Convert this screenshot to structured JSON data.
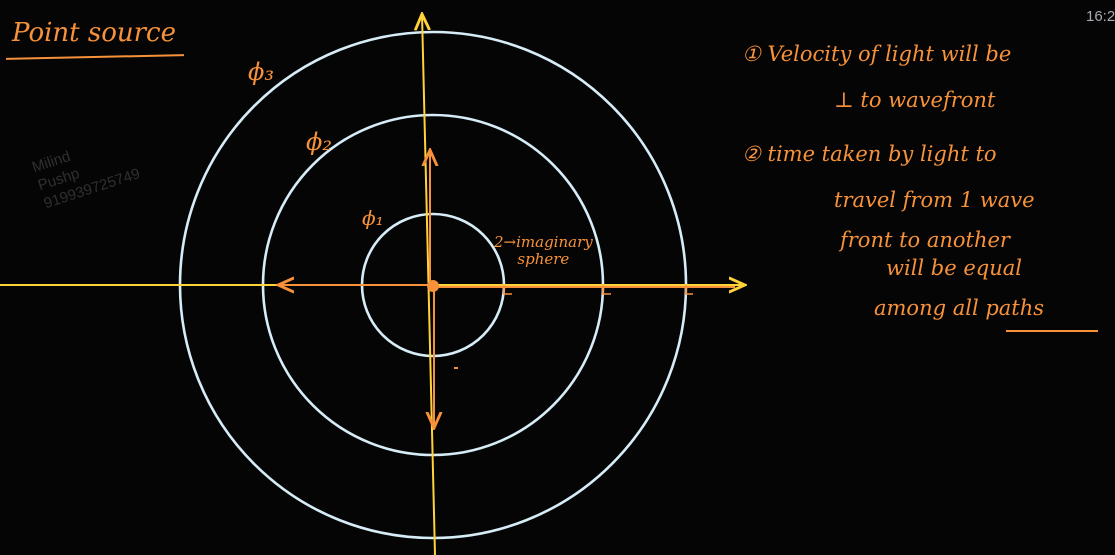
{
  "title": "Point source",
  "wavefront_labels": {
    "phi1": "ϕ₁",
    "phi2": "ϕ₂",
    "phi3": "ϕ₃"
  },
  "sphere_label": {
    "line1": "2→imaginary",
    "line2": "sphere"
  },
  "notes": {
    "n1_line1": "① Velocity of light will be",
    "n1_line2": "⊥ to wavefront",
    "n2_line1": "② time taken by light to",
    "n2_line2": "travel from 1 wave",
    "n2_line3": "front to another",
    "n2_line4": "will be equal",
    "n2_line5": "among all paths"
  },
  "watermark": {
    "line1": "Milind",
    "line2": "Pushp",
    "line3": "919939725749"
  },
  "clock": "16:2",
  "colors": {
    "background": "#050506",
    "ink_orange": "#f7923a",
    "axis_yellow": "#ffd23a",
    "circle_white": "#d6ecf6"
  }
}
